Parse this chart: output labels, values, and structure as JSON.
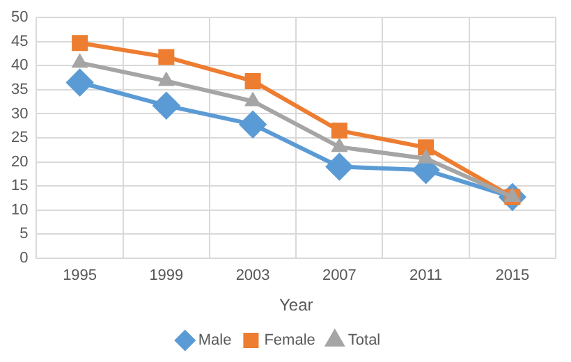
{
  "chart_data": {
    "type": "line",
    "xlabel": "Year",
    "categories": [
      "1995",
      "1999",
      "2003",
      "2007",
      "2011",
      "2015"
    ],
    "series": [
      {
        "name": "Male",
        "color": "#5b9bd5",
        "marker": "diamond",
        "values": [
          36.5,
          31.7,
          27.8,
          19.0,
          18.3,
          12.7
        ]
      },
      {
        "name": "Female",
        "color": "#ed7d31",
        "marker": "square",
        "values": [
          44.7,
          41.8,
          36.8,
          26.5,
          23.0,
          12.7
        ]
      },
      {
        "name": "Total",
        "color": "#a5a5a5",
        "marker": "triangle",
        "values": [
          40.6,
          36.8,
          32.6,
          23.1,
          20.7,
          12.7
        ]
      }
    ],
    "ylim": [
      0,
      50
    ],
    "yticks": [
      0,
      5,
      10,
      15,
      20,
      25,
      30,
      35,
      40,
      45,
      50
    ],
    "grid": true,
    "legend": "bottom"
  }
}
